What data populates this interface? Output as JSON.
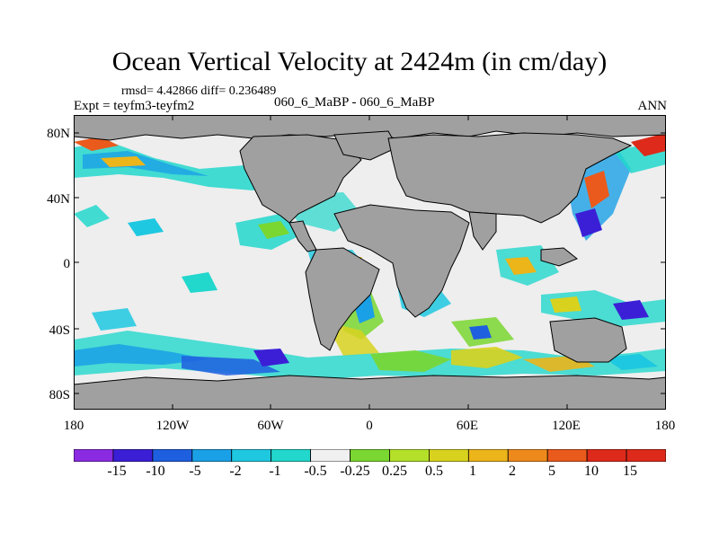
{
  "title": "Ocean Vertical Velocity at 2424m (in cm/day)",
  "stats": "rmsd= 4.42866 diff= 0.236489",
  "experiment": "Expt = teyfm3-teyfm2",
  "subtitle": "060_6_MaBP - 060_6_MaBP",
  "season": "ANN",
  "lat_labels": [
    "80N",
    "40N",
    "0",
    "40S",
    "80S"
  ],
  "lon_labels": [
    "180",
    "120W",
    "60W",
    "0",
    "60E",
    "120E",
    "180"
  ],
  "colorbar": {
    "labels": [
      "-15",
      "-10",
      "-5",
      "-2",
      "-1",
      "-0.5",
      "-0.25",
      "0.25",
      "0.5",
      "1",
      "2",
      "5",
      "10",
      "15"
    ],
    "colors": [
      "#8a2be2",
      "#3b1fd6",
      "#1e5fe0",
      "#1aa0e6",
      "#1ec8e0",
      "#22d7cc",
      "#f0f0f0",
      "#7ad630",
      "#b5e02a",
      "#d8d21e",
      "#ecb51a",
      "#ee8a1c",
      "#ea5a1c",
      "#dd2a1a"
    ]
  },
  "map_colors": {
    "land": "#a0a0a0",
    "ocean_neutral": "#eeeeee",
    "coast": "#000000"
  }
}
